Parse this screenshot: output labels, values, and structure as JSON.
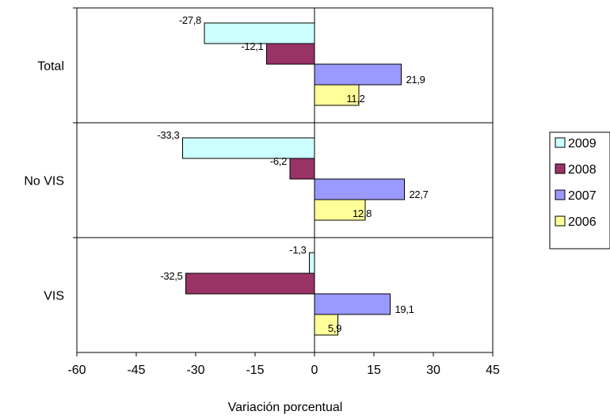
{
  "chart_data": {
    "type": "bar",
    "orientation": "horizontal",
    "categories": [
      "Total",
      "No VIS",
      "VIS"
    ],
    "series": [
      {
        "name": "2009",
        "values": [
          -27.8,
          -33.3,
          -1.3
        ],
        "labels": [
          "-27,8",
          "-33,3",
          "-1,3"
        ],
        "color": "#ccffff"
      },
      {
        "name": "2008",
        "values": [
          -12.1,
          -6.2,
          -32.5
        ],
        "labels": [
          "-12,1",
          "-6,2",
          "-32,5"
        ],
        "color": "#993366"
      },
      {
        "name": "2007",
        "values": [
          21.9,
          22.7,
          19.1
        ],
        "labels": [
          "21,9",
          "22,7",
          "19,1"
        ],
        "color": "#9999ff"
      },
      {
        "name": "2006",
        "values": [
          11.2,
          12.8,
          5.9
        ],
        "labels": [
          "11,2",
          "12,8",
          "5,9"
        ],
        "color": "#ffff99"
      }
    ],
    "xlabel": "Variación porcentual",
    "ylabel": "",
    "xlim": [
      -60,
      45
    ],
    "xticks": [
      -60,
      -45,
      -30,
      -15,
      0,
      15,
      30,
      45
    ],
    "grid": "category separators",
    "legend_position": "right"
  }
}
